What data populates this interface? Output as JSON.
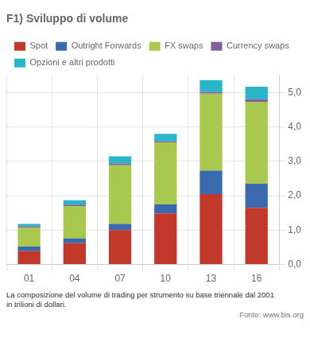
{
  "chart_data": {
    "type": "bar",
    "stacked": true,
    "title": "F1) Sviluppo di volume",
    "categories": [
      "01",
      "04",
      "07",
      "10",
      "13",
      "16"
    ],
    "series": [
      {
        "name": "Spot",
        "color": "#c0392b",
        "values": [
          0.39,
          0.62,
          1.0,
          1.49,
          2.05,
          1.65
        ]
      },
      {
        "name": "Outright Forwards",
        "color": "#3a6aad",
        "values": [
          0.13,
          0.14,
          0.18,
          0.26,
          0.68,
          0.7
        ]
      },
      {
        "name": "FX swaps",
        "color": "#a8c850",
        "values": [
          0.55,
          0.94,
          1.71,
          1.8,
          2.24,
          2.38
        ]
      },
      {
        "name": "Currency swaps",
        "color": "#8060a0",
        "values": [
          0.04,
          0.04,
          0.05,
          0.04,
          0.05,
          0.08
        ]
      },
      {
        "name": "Opzioni e altri prodotti",
        "color": "#29b6c8",
        "values": [
          0.07,
          0.13,
          0.21,
          0.21,
          0.34,
          0.36
        ]
      }
    ],
    "ylim": [
      0,
      5.5
    ],
    "yticks": [
      {
        "value": 0.0,
        "label": "0,0"
      },
      {
        "value": 1.0,
        "label": "1,0"
      },
      {
        "value": 2.0,
        "label": "2,0"
      },
      {
        "value": 3.0,
        "label": "3,0"
      },
      {
        "value": 4.0,
        "label": "4,0"
      },
      {
        "value": 5.0,
        "label": "5,0"
      }
    ],
    "grid": true,
    "legend": "top",
    "annotations": [
      "La composizione del volume di trading per strumento su base triennale dal 2001",
      "in trilioni di dollari.",
      "Fonte: www.bis.org"
    ]
  }
}
